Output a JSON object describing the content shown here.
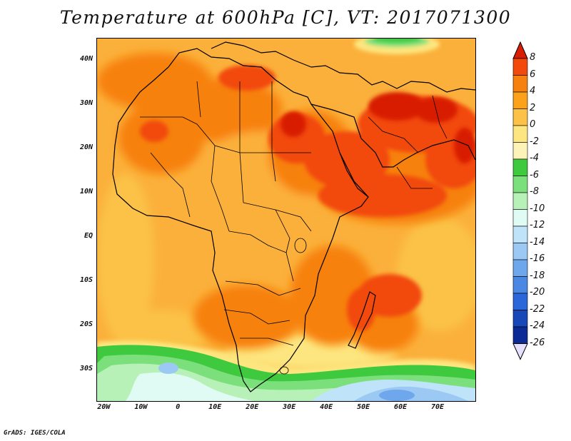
{
  "title": "Temperature at 600hPa [C], VT: 2017071300",
  "credit": "GrADS: IGES/COLA",
  "map": {
    "lon_range": [
      -22,
      80
    ],
    "lat_range": [
      -37,
      45
    ],
    "lat_ticks": [
      {
        "value": 40,
        "label": "40N"
      },
      {
        "value": 30,
        "label": "30N"
      },
      {
        "value": 20,
        "label": "20N"
      },
      {
        "value": 10,
        "label": "10N"
      },
      {
        "value": 0,
        "label": "EQ"
      },
      {
        "value": -10,
        "label": "10S"
      },
      {
        "value": -20,
        "label": "20S"
      },
      {
        "value": -30,
        "label": "30S"
      }
    ],
    "lon_ticks": [
      {
        "value": -20,
        "label": "20W"
      },
      {
        "value": -10,
        "label": "10W"
      },
      {
        "value": 0,
        "label": "0"
      },
      {
        "value": 10,
        "label": "10E"
      },
      {
        "value": 20,
        "label": "20E"
      },
      {
        "value": 30,
        "label": "30E"
      },
      {
        "value": 40,
        "label": "40E"
      },
      {
        "value": 50,
        "label": "50E"
      },
      {
        "value": 60,
        "label": "60E"
      },
      {
        "value": 70,
        "label": "70E"
      }
    ]
  },
  "colorbar": {
    "labels": [
      "8",
      "6",
      "4",
      "2",
      "0",
      "-2",
      "-4",
      "-6",
      "-8",
      "-10",
      "-12",
      "-14",
      "-16",
      "-18",
      "-20",
      "-22",
      "-24",
      "-26"
    ],
    "colors": [
      "#d81e05",
      "#f24a0c",
      "#f7810f",
      "#fba11b",
      "#fbc247",
      "#fde67f",
      "#fdf3b8",
      "#3ec93e",
      "#7be07b",
      "#b7f1b7",
      "#e0fbf3",
      "#bfe3f9",
      "#9bc9f4",
      "#6ea7ec",
      "#4a88e4",
      "#2b67d8",
      "#1847b8",
      "#0b2a96",
      "#0a157a"
    ],
    "arrow_top_color": "#d81e05",
    "arrow_bottom_color": "#e6e0ff"
  },
  "colors": {
    "background": "#fbb03b",
    "warm": "#f7810f",
    "hot": "#f24a0c",
    "hottest": "#d81e05",
    "cool": "#fde67f",
    "green": "#3ec93e",
    "light_green": "#7be07b",
    "pale_green": "#b7f1b7",
    "light_cyan": "#e0fbf3",
    "light_blue": "#9bc9f4",
    "blue": "#6ea7ec",
    "coast": "#000000"
  }
}
